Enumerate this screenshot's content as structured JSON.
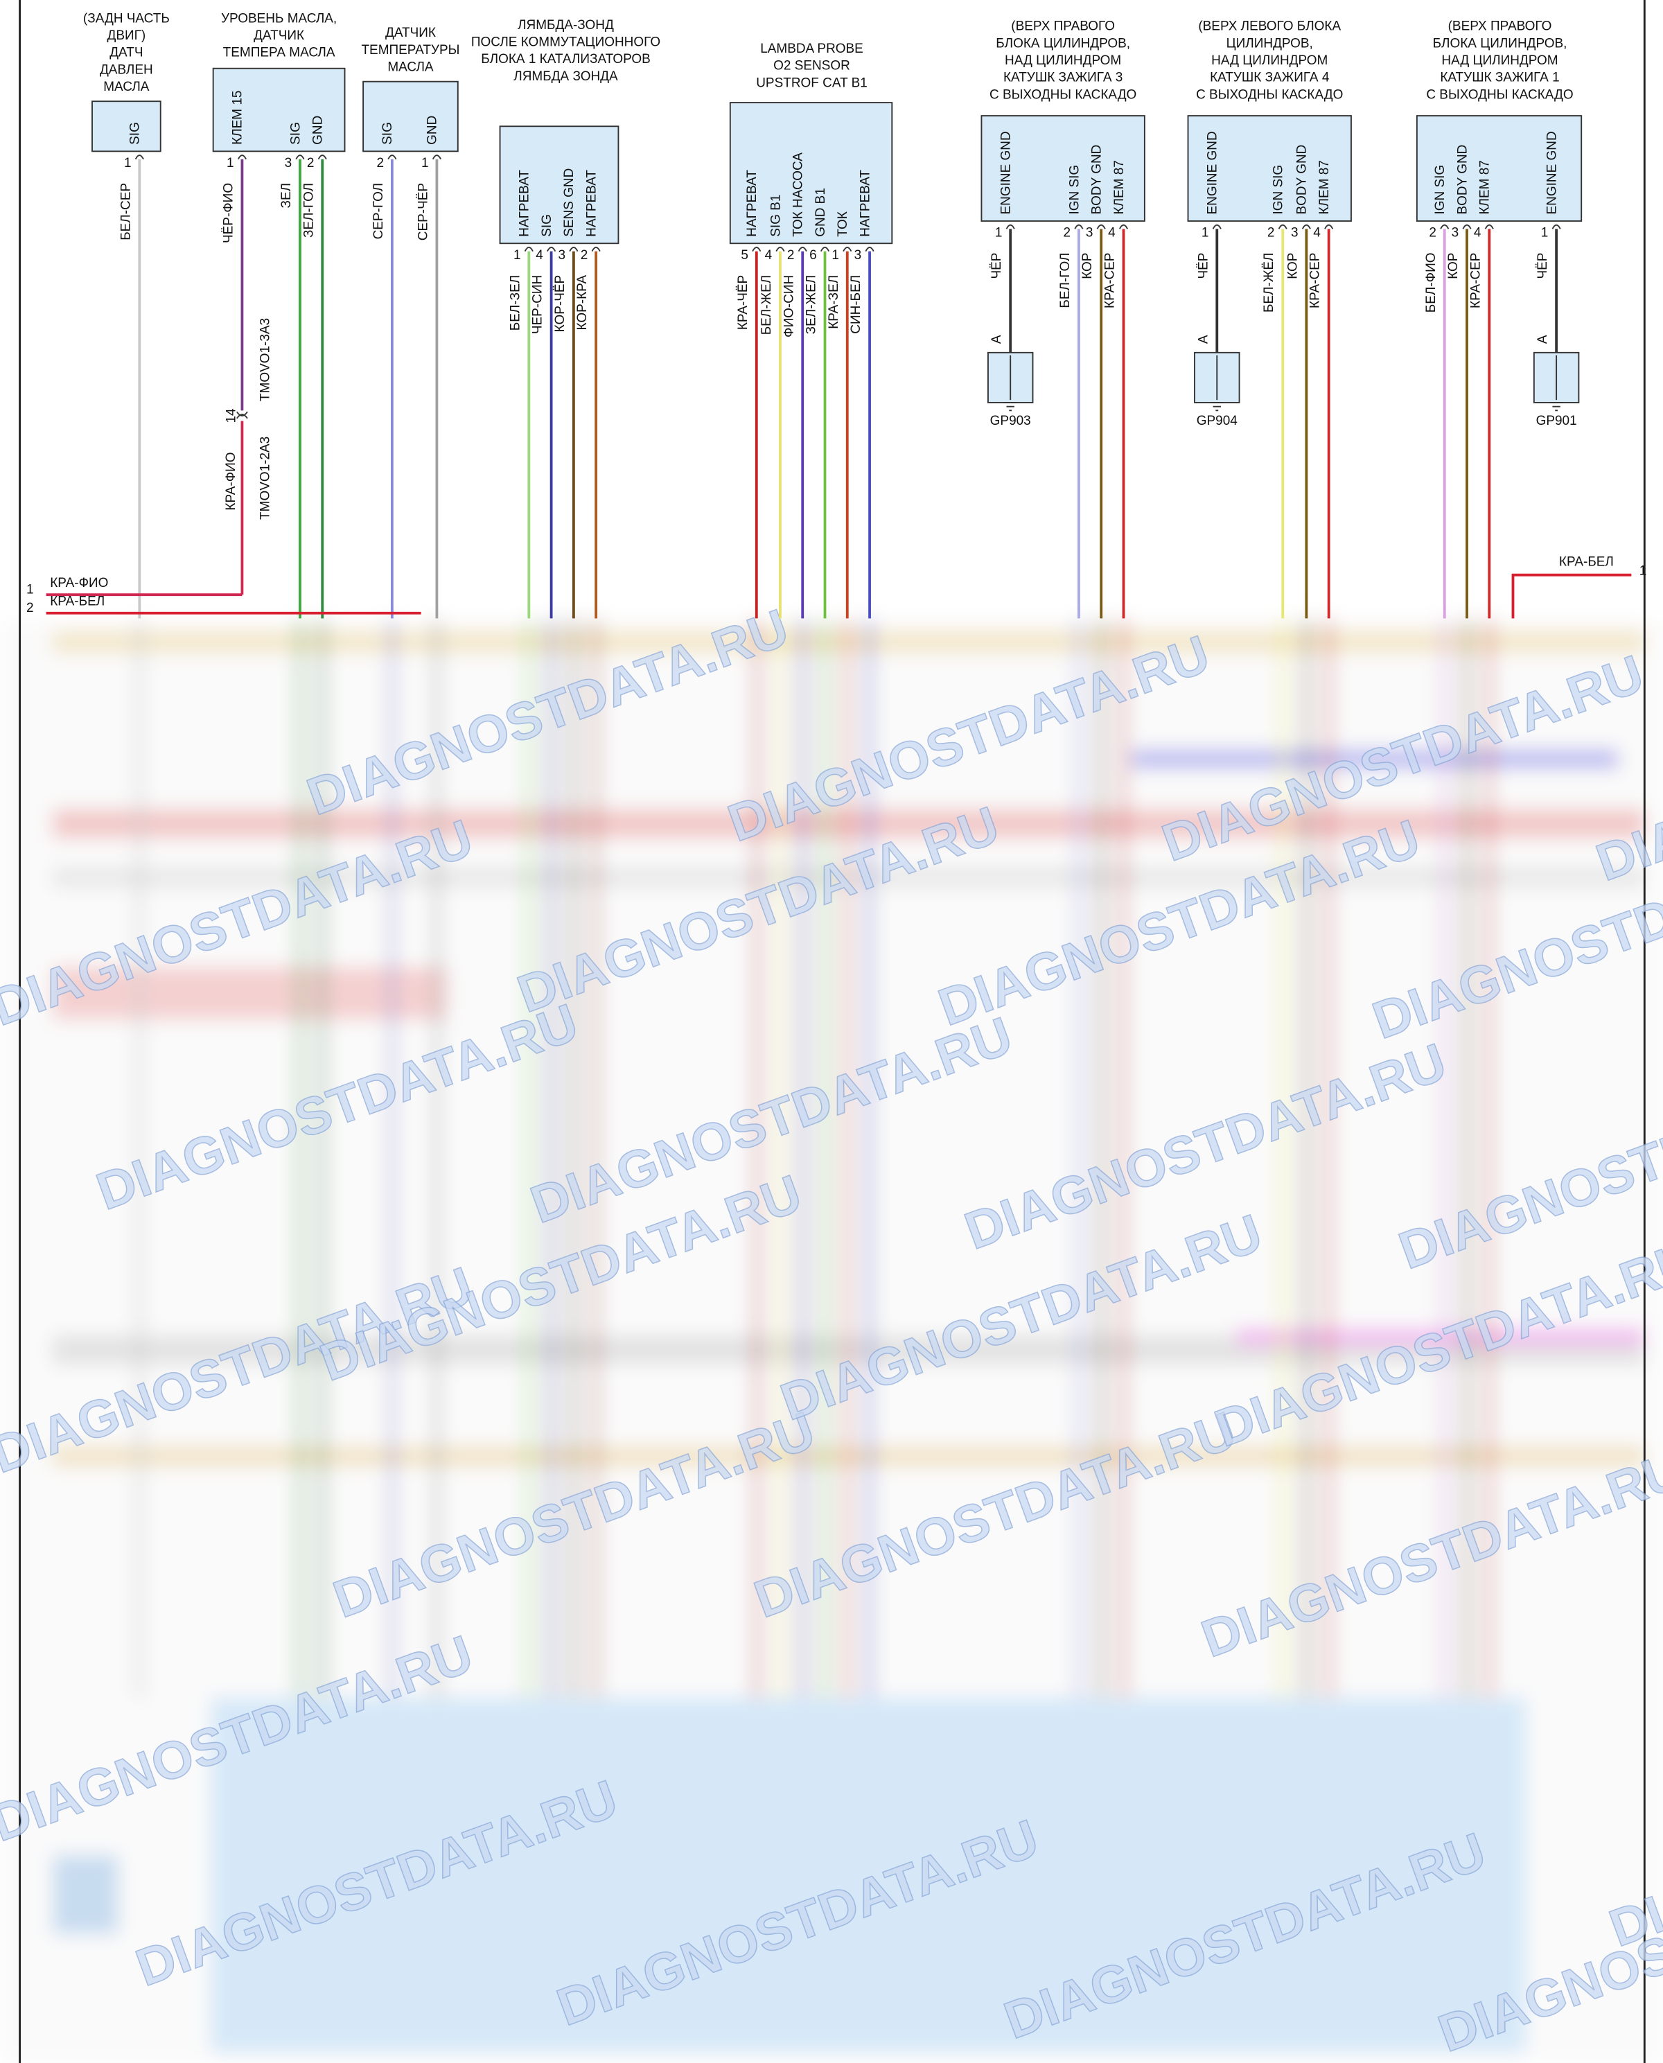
{
  "components": [
    {
      "title": [
        "(ЗАДН ЧАСТЬ",
        "ДВИГ)",
        "ДАТЧ",
        "ДАВЛЕН",
        "МАСЛА"
      ],
      "pins": [
        {
          "label": "SIG",
          "number": "1"
        }
      ],
      "wires": [
        {
          "label": "БЕЛ-СЕР",
          "color": "#c8c8c8"
        }
      ]
    },
    {
      "title": [
        "УРОВЕНЬ МАСЛА,",
        "ДАТЧИК",
        "ТЕМПЕРА МАСЛА"
      ],
      "pins": [
        {
          "label": "КЛЕМ 15",
          "number": "1"
        },
        {
          "label": "SIG",
          "number": "3"
        },
        {
          "label": "GND",
          "number": "2"
        }
      ],
      "wires": [
        {
          "label": "ЧЁР-ФИО",
          "color": "#7a3a8a"
        },
        {
          "label": "ЗЕЛ",
          "color": "#3aa83a"
        },
        {
          "label": "ЗЕЛ-ГОЛ",
          "color": "#2e8b3e"
        }
      ],
      "connector": {
        "number": "14",
        "top": "TMOVO1-3A3",
        "bottom": "TMOVO1-2A3",
        "wire": "КРА-ФИО"
      }
    },
    {
      "title": [
        "ДАТЧИК",
        "ТЕМПЕРАТУРЫ",
        "МАСЛА"
      ],
      "pins": [
        {
          "label": "SIG",
          "number": "2"
        },
        {
          "label": "GND",
          "number": "1"
        }
      ],
      "wires": [
        {
          "label": "СЕР-ГОЛ",
          "color": "#8a8ad8"
        },
        {
          "label": "СЕР-ЧЁР",
          "color": "#a0a0a0"
        }
      ]
    },
    {
      "title": [
        "ЛЯМБДА-ЗОНД",
        "ПОСЛЕ КОММУТАЦИОННОГО",
        "БЛОКА 1 КАТАЛИЗАТОРОВ",
        "ЛЯМБДА ЗОНДА"
      ],
      "pins": [
        {
          "label": "НАГРЕВАТ",
          "number": "1"
        },
        {
          "label": "SIG",
          "number": "4"
        },
        {
          "label": "SENS GND",
          "number": "3"
        },
        {
          "label": "НАГРЕВАТ",
          "number": "2"
        }
      ],
      "wires": [
        {
          "label": "БЕЛ-ЗЕЛ",
          "color": "#9ad87a"
        },
        {
          "label": "ЧЕР-СИН",
          "color": "#3a3aa0"
        },
        {
          "label": "КОР-ЧЁР",
          "color": "#6b4a1a"
        },
        {
          "label": "КОР-КРА",
          "color": "#b05a20"
        }
      ]
    },
    {
      "title": [
        "LAMBDA PROBE",
        "O2 SENSOR",
        "UPSTROF CAT B1"
      ],
      "pins": [
        {
          "label": "НАГРЕВАТ",
          "number": "5"
        },
        {
          "label": "SIG B1",
          "number": "4"
        },
        {
          "label": "ТОК НАСОСА",
          "number": "2"
        },
        {
          "label": "GND B1",
          "number": "6"
        },
        {
          "label": "ТОК",
          "number": "1"
        },
        {
          "label": "НАГРЕВАТ",
          "number": "3"
        }
      ],
      "wires": [
        {
          "label": "КРА-ЧЁР",
          "color": "#c82020"
        },
        {
          "label": "БЕЛ-ЖЕЛ",
          "color": "#e8e070"
        },
        {
          "label": "ФИО-СИН",
          "color": "#5a3ab0"
        },
        {
          "label": "ЗЕЛ-ЖЕЛ",
          "color": "#70c040"
        },
        {
          "label": "КРА-ЗЕЛ",
          "color": "#d04020"
        },
        {
          "label": "СИН-БЕЛ",
          "color": "#4a4ad0"
        }
      ]
    },
    {
      "title": [
        "(ВЕРХ ПРАВОГО",
        "БЛОКА ЦИЛИНДРОВ,",
        "НАД ЦИЛИНДРОМ",
        "КАТУШК ЗАЖИГА 3",
        "С ВЫХОДНЫ КАСКАДО"
      ],
      "pins": [
        {
          "label": "ENGINE GND",
          "number": "1"
        },
        {
          "label": "IGN SIG",
          "number": "2"
        },
        {
          "label": "BODY GND",
          "number": "3"
        },
        {
          "label": "КЛЕМ 87",
          "number": "4"
        }
      ],
      "wires": [
        {
          "label": "ЧЁР",
          "color": "#333333"
        },
        {
          "label": "БЕЛ-ГОЛ",
          "color": "#a8a8e8"
        },
        {
          "label": "КОР",
          "color": "#7a5a10"
        },
        {
          "label": "КРА-СЕР",
          "color": "#d02828"
        }
      ],
      "ground": {
        "pin": "A",
        "label": "GP903"
      }
    },
    {
      "title": [
        "(ВЕРХ ЛЕВОГО БЛОКА",
        "ЦИЛИНДРОВ,",
        "НАД ЦИЛИНДРОМ",
        "КАТУШК ЗАЖИГА 4",
        "С ВЫХОДНЫ КАСКАДО"
      ],
      "pins": [
        {
          "label": "ENGINE GND",
          "number": "1"
        },
        {
          "label": "IGN SIG",
          "number": "2"
        },
        {
          "label": "BODY GND",
          "number": "3"
        },
        {
          "label": "КЛЕМ 87",
          "number": "4"
        }
      ],
      "wires": [
        {
          "label": "ЧЁР",
          "color": "#333333"
        },
        {
          "label": "БЕЛ-ЖЁЛ",
          "color": "#e8e870"
        },
        {
          "label": "КОР",
          "color": "#7a5a10"
        },
        {
          "label": "КРА-СЕР",
          "color": "#d02828"
        }
      ],
      "ground": {
        "pin": "A",
        "label": "GP904"
      }
    },
    {
      "title": [
        "(ВЕРХ ПРАВОГО",
        "БЛОКА ЦИЛИНДРОВ,",
        "НАД ЦИЛИНДРОМ",
        "КАТУШК ЗАЖИГА 1",
        "С ВЫХОДНЫ КАСКАДО"
      ],
      "pins": [
        {
          "label": "IGN SIG",
          "number": "2"
        },
        {
          "label": "BODY GND",
          "number": "3"
        },
        {
          "label": "КЛЕМ 87",
          "number": "4"
        },
        {
          "label": "ENGINE GND",
          "number": "1"
        }
      ],
      "wires": [
        {
          "label": "БЕЛ-ФИО",
          "color": "#d8a0e0"
        },
        {
          "label": "КОР",
          "color": "#7a5a10"
        },
        {
          "label": "КРА-СЕР",
          "color": "#d02828"
        },
        {
          "label": "ЧЁР",
          "color": "#333333"
        }
      ],
      "ground": {
        "pin": "A",
        "label": "GP901"
      }
    }
  ],
  "left_edge": [
    {
      "number": "1",
      "label": "КРА-ФИО"
    },
    {
      "number": "2",
      "label": "КРА-БЕЛ"
    }
  ],
  "right_edge": [
    {
      "number": "1",
      "label": "КРА-БЕЛ"
    }
  ],
  "watermark": "DIAGNOSTDATA.RU"
}
